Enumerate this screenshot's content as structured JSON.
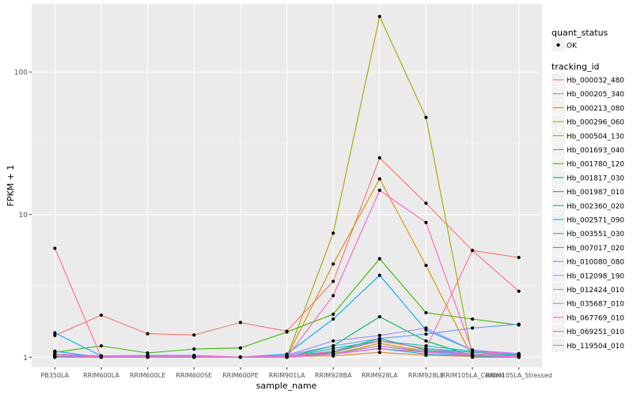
{
  "chart_data": {
    "type": "line",
    "title": "",
    "xlabel": "sample_name",
    "ylabel": "FPKM + 1",
    "y_scale": "log10",
    "ylim": [
      0.85,
      300
    ],
    "y_ticks": [
      1,
      10,
      100
    ],
    "y_tick_labels": [
      "1",
      "10",
      "100"
    ],
    "grid": true,
    "panel_background": "#ebebeb",
    "grid_color": "#ffffff",
    "legend_position": "right",
    "categories": [
      "PB350LA",
      "RRIM600LA",
      "RRIM600LE",
      "RRIM600SE",
      "RRIM600PE",
      "RRIM901LA",
      "RRIM928BA",
      "RRIM928LA",
      "RRIM928LE",
      "RRIM105LA_Control",
      "RRIM105LA_Stressed"
    ],
    "x_tick_labels": [
      "PB350LA",
      "RRIM600LA",
      "RRIM600LE",
      "RRIM600SE",
      "RRIM600PE",
      "RRIM901LA",
      "RRIM928BA",
      "RRIM928LA",
      "RRIM928LE",
      "RRIM105LA_Control",
      "RRIM105LA_Stressed"
    ],
    "legend_shape": {
      "title": "quant_status",
      "entries": [
        "OK"
      ]
    },
    "legend_color_title": "tracking_id",
    "series": [
      {
        "name": "Hb_000032_480",
        "color": "#F8766D",
        "values": [
          1.42,
          1.97,
          1.46,
          1.43,
          1.75,
          1.52,
          3.4,
          25.0,
          12.0,
          5.6,
          5.0
        ]
      },
      {
        "name": "Hb_000205_340",
        "color": "#EA8331",
        "values": [
          1.0,
          1.0,
          1.0,
          1.0,
          1.0,
          1.01,
          1.02,
          1.08,
          1.03,
          1.01,
          1.0
        ]
      },
      {
        "name": "Hb_000213_080",
        "color": "#D89000",
        "values": [
          1.0,
          1.0,
          1.0,
          1.0,
          1.0,
          1.0,
          4.5,
          17.8,
          4.4,
          1.0,
          1.0
        ]
      },
      {
        "name": "Hb_000296_060",
        "color": "#C09B00",
        "values": [
          1.02,
          1.0,
          1.0,
          1.0,
          1.0,
          1.0,
          1.05,
          1.25,
          1.1,
          1.05,
          1.03
        ]
      },
      {
        "name": "Hb_000504_130",
        "color": "#A3A500",
        "values": [
          1.0,
          1.0,
          1.0,
          1.0,
          1.0,
          1.0,
          7.4,
          245.0,
          48.0,
          1.0,
          1.0
        ]
      },
      {
        "name": "Hb_001693_040",
        "color": "#7CAE00",
        "values": [
          1.05,
          1.0,
          1.0,
          1.0,
          1.0,
          1.0,
          1.06,
          1.2,
          1.08,
          1.04,
          1.02
        ]
      },
      {
        "name": "Hb_001780_120",
        "color": "#39B600",
        "values": [
          1.08,
          1.2,
          1.07,
          1.14,
          1.16,
          1.5,
          2.0,
          4.9,
          2.05,
          1.85,
          1.68
        ]
      },
      {
        "name": "Hb_001817_030",
        "color": "#00BB4E",
        "values": [
          1.0,
          1.0,
          1.0,
          1.0,
          1.0,
          1.0,
          1.2,
          1.92,
          1.3,
          1.02,
          1.0
        ]
      },
      {
        "name": "Hb_001987_010",
        "color": "#00BF7D",
        "values": [
          1.0,
          1.0,
          1.0,
          1.0,
          1.0,
          1.0,
          1.1,
          1.35,
          1.12,
          1.05,
          1.02
        ]
      },
      {
        "name": "Hb_002360_020",
        "color": "#00C1A3",
        "values": [
          1.02,
          1.0,
          1.0,
          1.0,
          1.0,
          1.0,
          1.08,
          1.3,
          1.15,
          1.08,
          1.03
        ]
      },
      {
        "name": "Hb_002571_090",
        "color": "#00BFC4",
        "values": [
          1.0,
          1.0,
          1.0,
          1.0,
          1.0,
          1.0,
          1.15,
          1.3,
          1.2,
          1.1,
          1.05
        ]
      },
      {
        "name": "Hb_003551_030",
        "color": "#00B8E5",
        "values": [
          1.1,
          1.0,
          1.0,
          1.0,
          1.0,
          1.0,
          1.05,
          1.15,
          1.05,
          1.02,
          1.0
        ]
      },
      {
        "name": "Hb_007017_020",
        "color": "#00ABFD",
        "values": [
          1.48,
          1.02,
          1.02,
          1.02,
          1.0,
          1.05,
          1.85,
          3.75,
          1.55,
          1.12,
          1.04
        ]
      },
      {
        "name": "Hb_010080_080",
        "color": "#619CFF",
        "values": [
          1.05,
          1.02,
          1.02,
          1.02,
          1.0,
          1.03,
          1.2,
          1.35,
          1.45,
          1.6,
          1.7
        ]
      },
      {
        "name": "Hb_012098_190",
        "color": "#A58AFF",
        "values": [
          1.05,
          1.02,
          1.03,
          1.03,
          1.0,
          1.03,
          1.3,
          1.42,
          1.6,
          1.12,
          1.06
        ]
      },
      {
        "name": "Hb_012424_010",
        "color": "#C77CFF",
        "values": [
          1.0,
          1.0,
          1.0,
          1.0,
          1.0,
          1.0,
          1.05,
          1.2,
          1.1,
          1.05,
          1.0
        ]
      },
      {
        "name": "Hb_035687_010",
        "color": "#E76BF3",
        "values": [
          1.02,
          1.02,
          1.02,
          1.02,
          1.0,
          1.02,
          1.1,
          1.3,
          1.15,
          1.05,
          1.02
        ]
      },
      {
        "name": "Hb_067769_010",
        "color": "#FA62DB",
        "values": [
          1.0,
          1.0,
          1.0,
          1.0,
          1.0,
          1.0,
          1.05,
          1.15,
          1.08,
          1.03,
          1.0
        ]
      },
      {
        "name": "Hb_069251_010",
        "color": "#FF62BC",
        "values": [
          1.05,
          1.0,
          1.0,
          1.0,
          1.0,
          1.0,
          2.7,
          14.8,
          8.8,
          1.1,
          1.05
        ]
      },
      {
        "name": "Hb_119504_010",
        "color": "#FF6C91",
        "values": [
          5.8,
          1.0,
          1.0,
          1.0,
          1.0,
          1.0,
          1.1,
          1.3,
          1.15,
          5.6,
          2.9
        ]
      }
    ]
  }
}
